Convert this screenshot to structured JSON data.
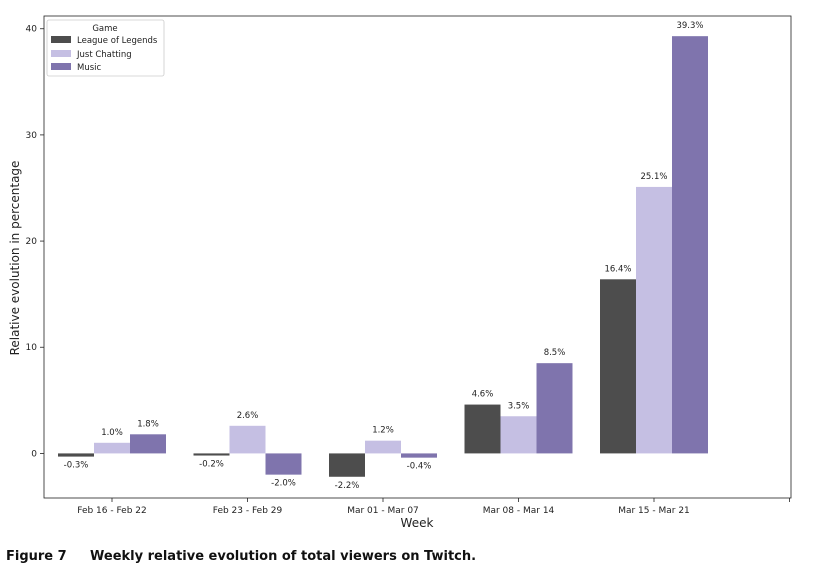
{
  "figure": {
    "label": "Figure 7",
    "caption": "Weekly relative evolution of total viewers on Twitch."
  },
  "chart_data": {
    "type": "bar",
    "title": "",
    "xlabel": "Week",
    "ylabel": "Relative evolution in percentage",
    "categories": [
      "Feb 16 - Feb 22",
      "Feb 23 - Feb 29",
      "Mar 01 - Mar 07",
      "Mar 08 - Mar 14",
      "Mar 15 - Mar 21"
    ],
    "series": [
      {
        "name": "League of Legends",
        "color": "#4d4d4d",
        "values": [
          -0.3,
          -0.2,
          -2.2,
          4.6,
          16.4
        ],
        "labels": [
          "-0.3%",
          "-0.2%",
          "-2.2%",
          "4.6%",
          "16.4%"
        ]
      },
      {
        "name": "Just Chatting",
        "color": "#c5bfe3",
        "values": [
          1.0,
          2.6,
          1.2,
          3.5,
          25.1
        ],
        "labels": [
          "1.0%",
          "2.6%",
          "1.2%",
          "3.5%",
          "25.1%"
        ]
      },
      {
        "name": "Music",
        "color": "#7f74ad",
        "values": [
          1.8,
          -2.0,
          -0.4,
          8.5,
          39.3
        ],
        "labels": [
          "1.8%",
          "-2.0%",
          "-0.4%",
          "8.5%",
          "39.3%"
        ]
      }
    ],
    "ylim": [
      -4.2,
      41.2
    ],
    "yticks": [
      0,
      10,
      20,
      30,
      40
    ],
    "legend": {
      "title": "Game",
      "position": "top-left"
    },
    "grid": false
  }
}
